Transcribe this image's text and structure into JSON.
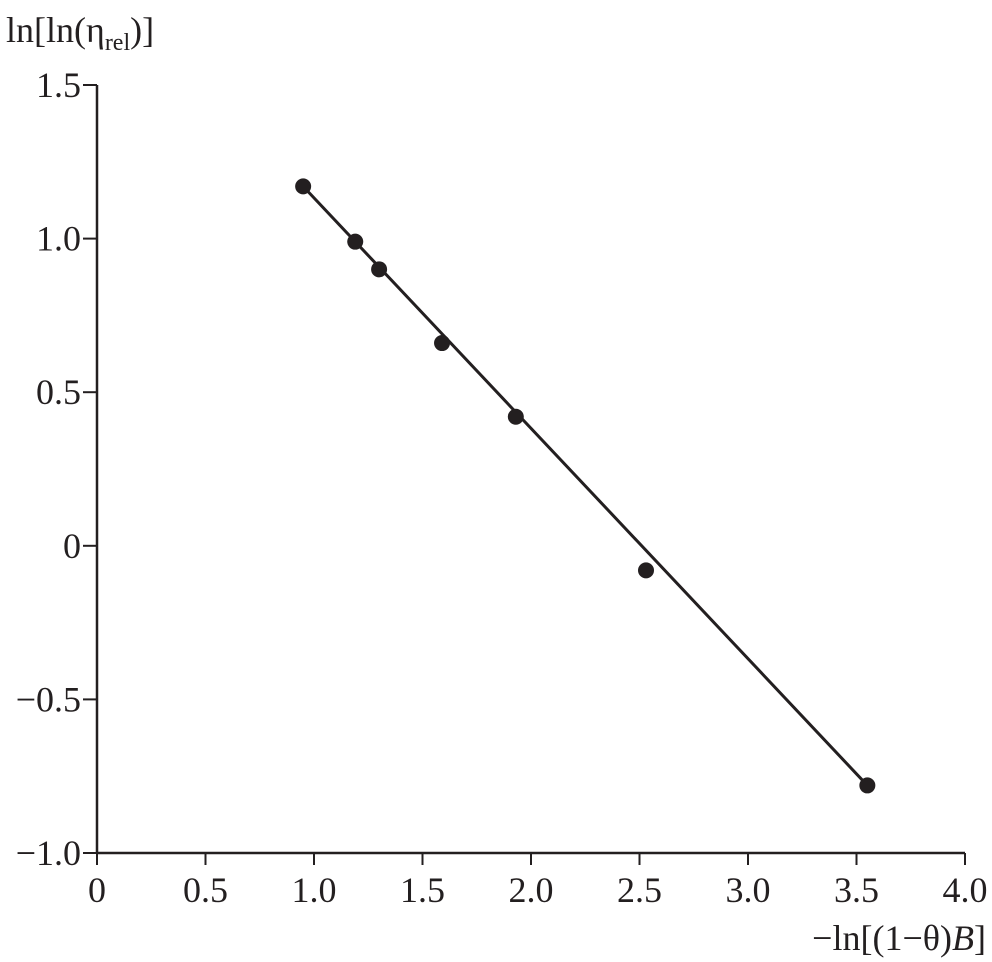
{
  "chart_data": {
    "type": "scatter",
    "title": "",
    "xlabel": {
      "prefix": "−ln[(1−θ)",
      "italic": "B",
      "suffix": "]"
    },
    "ylabel": {
      "prefix": "ln[ln(η",
      "subscript": "rel",
      "suffix": ")]"
    },
    "xlim": [
      0,
      4.0
    ],
    "ylim": [
      -1.0,
      1.5
    ],
    "x_ticks": [
      0,
      0.5,
      1.0,
      1.5,
      2.0,
      2.5,
      3.0,
      3.5,
      4.0
    ],
    "x_tick_labels": [
      "0",
      "0.5",
      "1.0",
      "1.5",
      "2.0",
      "2.5",
      "3.0",
      "3.5",
      "4.0"
    ],
    "y_ticks": [
      1.5,
      1.0,
      0.5,
      0,
      -0.5,
      -1.0
    ],
    "y_tick_labels": [
      "1.5",
      "1.0",
      "0.5",
      "0",
      "−0.5",
      "−1.0"
    ],
    "grid": false,
    "series": [
      {
        "points": [
          {
            "x": 0.95,
            "y": 1.17
          },
          {
            "x": 1.19,
            "y": 0.99
          },
          {
            "x": 1.3,
            "y": 0.9
          },
          {
            "x": 1.59,
            "y": 0.66
          },
          {
            "x": 1.93,
            "y": 0.42
          },
          {
            "x": 2.53,
            "y": -0.08
          },
          {
            "x": 3.55,
            "y": -0.78
          }
        ]
      }
    ],
    "fit_line": {
      "x": [
        0.95,
        3.55
      ],
      "y": [
        1.17,
        -0.78
      ]
    },
    "colors": {
      "ink": "#231f20",
      "background": "#ffffff"
    }
  }
}
